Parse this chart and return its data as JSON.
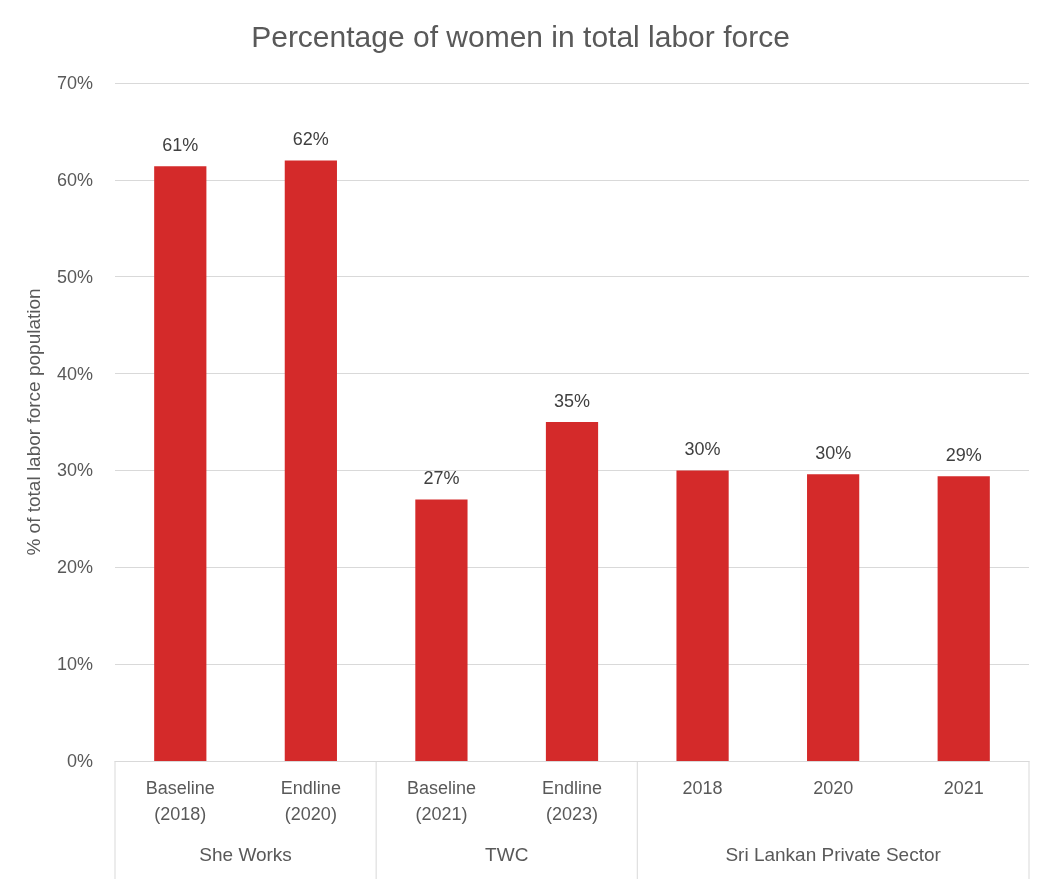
{
  "chart_data": {
    "type": "bar",
    "title": "Percentage of women in total labor force",
    "ylabel": "% of total labor force population",
    "categories": [
      "Baseline\n(2018)",
      "Endline\n(2020)",
      "Baseline\n(2021)",
      "Endline\n(2023)",
      "2018",
      "2020",
      "2021"
    ],
    "values": [
      61.4,
      62,
      27,
      35,
      30,
      29.6,
      29.4
    ],
    "value_labels": [
      "61%",
      "62%",
      "27%",
      "35%",
      "30%",
      "30%",
      "29%"
    ],
    "color": "#d42a2a",
    "ylim": [
      0,
      70
    ],
    "yticks": [
      {
        "value": 0,
        "label": "0%"
      },
      {
        "value": 10,
        "label": "10%"
      },
      {
        "value": 20,
        "label": "20%"
      },
      {
        "value": 30,
        "label": "30%"
      },
      {
        "value": 40,
        "label": "40%"
      },
      {
        "value": 50,
        "label": "50%"
      },
      {
        "value": 60,
        "label": "60%"
      },
      {
        "value": 70,
        "label": "70%"
      }
    ],
    "grid": "y",
    "annotations": [
      "She Works",
      "TWC",
      "Sri Lankan Private Sector"
    ]
  }
}
